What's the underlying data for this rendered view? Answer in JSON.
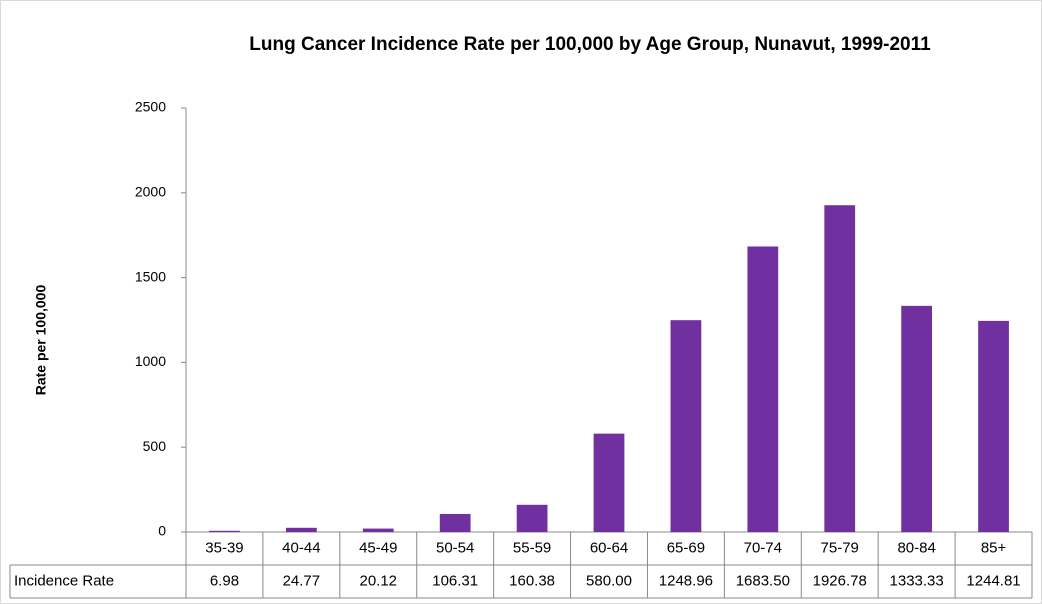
{
  "chart_data": {
    "type": "bar",
    "title": "Lung Cancer Incidence Rate per 100,000 by Age Group, Nunavut, 1999-2011",
    "y_label": "Rate per 100,000",
    "categories": [
      "35-39",
      "40-44",
      "45-49",
      "50-54",
      "55-59",
      "60-64",
      "65-69",
      "70-74",
      "75-79",
      "80-84",
      "85+"
    ],
    "series": [
      {
        "name": "Incidence Rate",
        "color": "#7030a0",
        "values": [
          6.98,
          24.77,
          20.12,
          106.31,
          160.38,
          580,
          1248.96,
          1683.5,
          1926.78,
          1333.33,
          1244.81
        ],
        "value_labels": [
          "6.98",
          "24.77",
          "20.12",
          "106.31",
          "160.38",
          "580.00",
          "1248.96",
          "1683.50",
          "1926.78",
          "1333.33",
          "1244.81"
        ]
      }
    ],
    "ylim": [
      0,
      2500
    ],
    "yticks": [
      0,
      500,
      1000,
      1500,
      2000,
      2500
    ],
    "grid": false
  }
}
